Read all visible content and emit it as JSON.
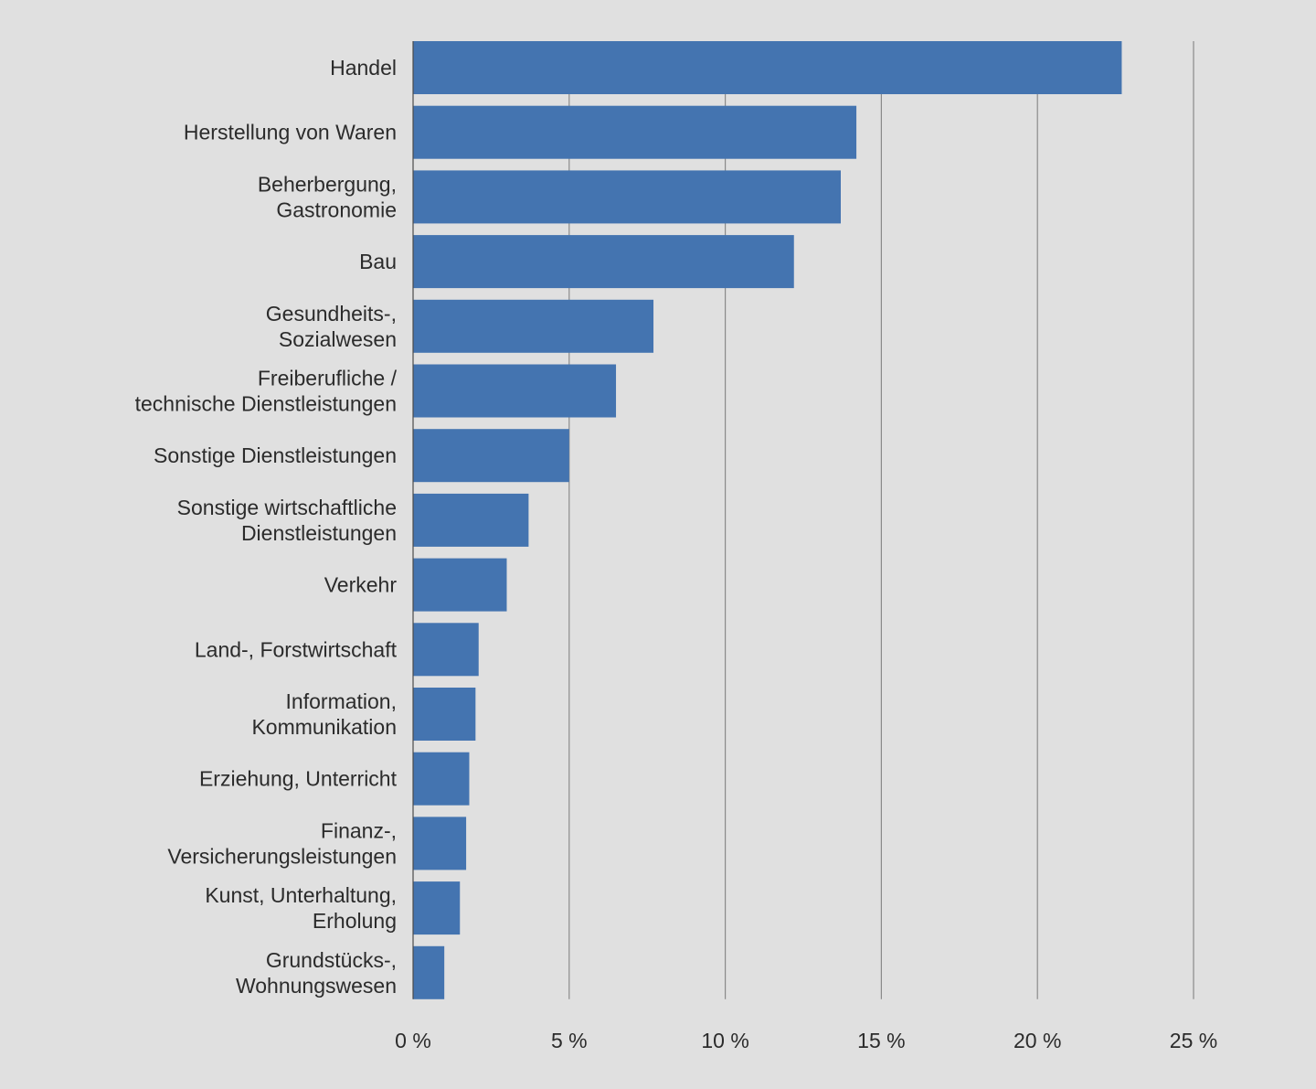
{
  "chart_data": {
    "type": "bar",
    "orientation": "horizontal",
    "title": "",
    "xlabel": "",
    "ylabel": "",
    "categories": [
      [
        "Handel"
      ],
      [
        "Herstellung von Waren"
      ],
      [
        "Beherbergung,",
        "Gastronomie"
      ],
      [
        "Bau"
      ],
      [
        "Gesundheits-,",
        "Sozialwesen"
      ],
      [
        "Freiberufliche /",
        "technische Dienstleistungen"
      ],
      [
        "Sonstige Dienstleistungen"
      ],
      [
        "Sonstige wirtschaftliche",
        "Dienstleistungen"
      ],
      [
        "Verkehr"
      ],
      [
        "Land-, Forstwirtschaft"
      ],
      [
        "Information,",
        "Kommunikation"
      ],
      [
        "Erziehung, Unterricht"
      ],
      [
        "Finanz-,",
        "Versicherungsleistungen"
      ],
      [
        "Kunst, Unterhaltung,",
        "Erholung"
      ],
      [
        "Grundstücks-,",
        "Wohnungswesen"
      ]
    ],
    "values": [
      22.7,
      14.2,
      13.7,
      12.2,
      7.7,
      6.5,
      5.0,
      3.7,
      3.0,
      2.1,
      2.0,
      1.8,
      1.7,
      1.5,
      1.0
    ],
    "xlim": [
      0,
      25
    ],
    "xticks": [
      0,
      5,
      10,
      15,
      20,
      25
    ],
    "xtick_labels": [
      "0 %",
      "5 %",
      "10 %",
      "15 %",
      "20 %",
      "25 %"
    ],
    "grid": "vertical",
    "legend": "none",
    "colors": {
      "bar": "#4474b0",
      "background": "#e0e0e0",
      "grid": "#8a8a8a",
      "axis": "#4a4a4a",
      "text": "#2b2b2b"
    }
  }
}
